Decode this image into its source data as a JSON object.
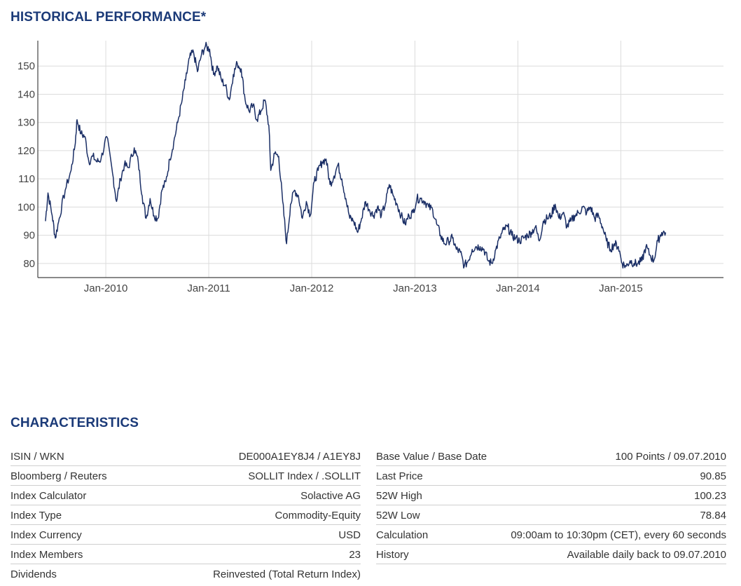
{
  "performance": {
    "title": "HISTORICAL PERFORMANCE*"
  },
  "chart_data": {
    "type": "line",
    "title": "",
    "xlabel": "",
    "ylabel": "",
    "x_ticks": [
      "Jan-2010",
      "Jan-2011",
      "Jan-2012",
      "Jan-2013",
      "Jan-2014",
      "Jan-2015"
    ],
    "y_ticks": [
      80,
      90,
      100,
      110,
      120,
      130,
      140,
      150
    ],
    "xlim": [
      "2009-05-05",
      "2015-12-31"
    ],
    "ylim": [
      75,
      159
    ],
    "grid": true,
    "legend": "none",
    "line_color": "#1b2f66",
    "series": [
      {
        "points": [
          [
            "2009-06-01",
            95
          ],
          [
            "2009-06-10",
            105
          ],
          [
            "2009-06-25",
            97
          ],
          [
            "2009-07-06",
            89
          ],
          [
            "2009-07-20",
            96
          ],
          [
            "2009-08-10",
            106
          ],
          [
            "2009-08-31",
            113
          ],
          [
            "2009-09-14",
            122
          ],
          [
            "2009-09-21",
            131
          ],
          [
            "2009-10-05",
            126
          ],
          [
            "2009-10-19",
            125
          ],
          [
            "2009-11-02",
            116
          ],
          [
            "2009-11-16",
            118
          ],
          [
            "2009-12-01",
            116
          ],
          [
            "2009-12-15",
            117
          ],
          [
            "2010-01-04",
            125
          ],
          [
            "2010-01-25",
            112
          ],
          [
            "2010-02-08",
            102
          ],
          [
            "2010-02-22",
            110
          ],
          [
            "2010-03-08",
            115
          ],
          [
            "2010-03-22",
            114
          ],
          [
            "2010-04-12",
            121
          ],
          [
            "2010-04-26",
            116
          ],
          [
            "2010-05-10",
            104
          ],
          [
            "2010-05-24",
            96
          ],
          [
            "2010-06-07",
            103
          ],
          [
            "2010-06-21",
            97
          ],
          [
            "2010-07-05",
            96
          ],
          [
            "2010-07-19",
            106
          ],
          [
            "2010-08-02",
            109
          ],
          [
            "2010-08-16",
            117
          ],
          [
            "2010-08-30",
            123
          ],
          [
            "2010-09-13",
            130
          ],
          [
            "2010-09-27",
            137
          ],
          [
            "2010-10-11",
            145
          ],
          [
            "2010-10-25",
            153
          ],
          [
            "2010-11-08",
            155
          ],
          [
            "2010-11-22",
            148
          ],
          [
            "2010-12-06",
            154
          ],
          [
            "2010-12-20",
            157
          ],
          [
            "2011-01-04",
            156
          ],
          [
            "2011-01-18",
            147
          ],
          [
            "2011-02-01",
            150
          ],
          [
            "2011-02-15",
            145
          ],
          [
            "2011-03-01",
            143
          ],
          [
            "2011-03-15",
            138
          ],
          [
            "2011-03-29",
            147
          ],
          [
            "2011-04-12",
            151
          ],
          [
            "2011-04-26",
            149
          ],
          [
            "2011-05-10",
            138
          ],
          [
            "2011-05-24",
            134
          ],
          [
            "2011-06-07",
            136
          ],
          [
            "2011-06-21",
            131
          ],
          [
            "2011-07-05",
            134
          ],
          [
            "2011-07-19",
            138
          ],
          [
            "2011-08-02",
            129
          ],
          [
            "2011-08-09",
            113
          ],
          [
            "2011-08-23",
            119
          ],
          [
            "2011-09-06",
            118
          ],
          [
            "2011-09-20",
            102
          ],
          [
            "2011-10-04",
            87
          ],
          [
            "2011-10-18",
            101
          ],
          [
            "2011-11-01",
            106
          ],
          [
            "2011-11-15",
            104
          ],
          [
            "2011-11-29",
            96
          ],
          [
            "2011-12-13",
            102
          ],
          [
            "2011-12-27",
            97
          ],
          [
            "2012-01-10",
            109
          ],
          [
            "2012-01-24",
            113
          ],
          [
            "2012-02-07",
            116
          ],
          [
            "2012-02-21",
            117
          ],
          [
            "2012-03-06",
            108
          ],
          [
            "2012-03-20",
            111
          ],
          [
            "2012-04-03",
            115
          ],
          [
            "2012-04-17",
            110
          ],
          [
            "2012-05-01",
            103
          ],
          [
            "2012-05-15",
            96
          ],
          [
            "2012-05-29",
            95
          ],
          [
            "2012-06-12",
            91
          ],
          [
            "2012-06-26",
            96
          ],
          [
            "2012-07-10",
            102
          ],
          [
            "2012-07-24",
            99
          ],
          [
            "2012-08-07",
            97
          ],
          [
            "2012-08-21",
            100
          ],
          [
            "2012-09-04",
            97
          ],
          [
            "2012-09-18",
            101
          ],
          [
            "2012-10-02",
            108
          ],
          [
            "2012-10-16",
            104
          ],
          [
            "2012-10-30",
            101
          ],
          [
            "2012-11-13",
            97
          ],
          [
            "2012-11-27",
            94
          ],
          [
            "2012-12-11",
            97
          ],
          [
            "2012-12-25",
            98
          ],
          [
            "2013-01-08",
            103
          ],
          [
            "2013-01-22",
            103
          ],
          [
            "2013-02-05",
            102
          ],
          [
            "2013-02-19",
            100
          ],
          [
            "2013-03-05",
            99
          ],
          [
            "2013-03-19",
            94
          ],
          [
            "2013-04-02",
            90
          ],
          [
            "2013-04-16",
            87
          ],
          [
            "2013-04-30",
            88
          ],
          [
            "2013-05-14",
            89
          ],
          [
            "2013-05-28",
            85
          ],
          [
            "2013-06-11",
            84
          ],
          [
            "2013-06-25",
            79
          ],
          [
            "2013-07-09",
            81
          ],
          [
            "2013-07-23",
            85
          ],
          [
            "2013-08-06",
            86
          ],
          [
            "2013-08-20",
            86
          ],
          [
            "2013-09-03",
            85
          ],
          [
            "2013-09-17",
            81
          ],
          [
            "2013-10-01",
            80
          ],
          [
            "2013-10-15",
            85
          ],
          [
            "2013-10-29",
            89
          ],
          [
            "2013-11-12",
            92
          ],
          [
            "2013-11-26",
            93
          ],
          [
            "2013-12-10",
            90
          ],
          [
            "2013-12-24",
            89
          ],
          [
            "2014-01-07",
            88
          ],
          [
            "2014-01-21",
            89
          ],
          [
            "2014-02-04",
            90
          ],
          [
            "2014-02-18",
            91
          ],
          [
            "2014-03-04",
            93
          ],
          [
            "2014-03-18",
            88
          ],
          [
            "2014-04-01",
            95
          ],
          [
            "2014-04-15",
            96
          ],
          [
            "2014-04-29",
            97
          ],
          [
            "2014-05-13",
            101
          ],
          [
            "2014-05-27",
            96
          ],
          [
            "2014-06-10",
            98
          ],
          [
            "2014-06-24",
            93
          ],
          [
            "2014-07-08",
            95
          ],
          [
            "2014-07-22",
            97
          ],
          [
            "2014-08-05",
            98
          ],
          [
            "2014-08-19",
            100
          ],
          [
            "2014-09-02",
            98
          ],
          [
            "2014-09-16",
            100
          ],
          [
            "2014-09-30",
            96
          ],
          [
            "2014-10-14",
            97
          ],
          [
            "2014-10-28",
            93
          ],
          [
            "2014-11-11",
            88
          ],
          [
            "2014-11-25",
            85
          ],
          [
            "2014-12-09",
            87
          ],
          [
            "2014-12-23",
            86
          ],
          [
            "2015-01-06",
            80
          ],
          [
            "2015-01-20",
            79
          ],
          [
            "2015-02-03",
            81
          ],
          [
            "2015-02-17",
            80
          ],
          [
            "2015-03-03",
            80
          ],
          [
            "2015-03-17",
            81
          ],
          [
            "2015-03-31",
            86
          ],
          [
            "2015-04-14",
            83
          ],
          [
            "2015-04-28",
            81
          ],
          [
            "2015-05-12",
            88
          ],
          [
            "2015-05-26",
            91
          ],
          [
            "2015-06-09",
            91
          ]
        ]
      }
    ]
  },
  "characteristics": {
    "title": "CHARACTERISTICS",
    "left_rows": [
      {
        "label": "ISIN / WKN",
        "value": "DE000A1EY8J4 / A1EY8J"
      },
      {
        "label": "Bloomberg / Reuters",
        "value": "SOLLIT Index / .SOLLIT"
      },
      {
        "label": "Index Calculator",
        "value": "Solactive AG"
      },
      {
        "label": "Index Type",
        "value": "Commodity-Equity"
      },
      {
        "label": "Index Currency",
        "value": "USD"
      },
      {
        "label": "Index Members",
        "value": "23"
      },
      {
        "label": "Dividends",
        "value": "Reinvested (Total Return Index)"
      }
    ],
    "right_rows": [
      {
        "label": "Base Value / Base Date",
        "value": "100 Points / 09.07.2010"
      },
      {
        "label": "Last Price",
        "value": "90.85"
      },
      {
        "label": "52W High",
        "value": "100.23"
      },
      {
        "label": "52W Low",
        "value": "78.84"
      },
      {
        "label": "Calculation",
        "value": "09:00am to 10:30pm (CET), every 60 seconds"
      },
      {
        "label": "History",
        "value": "Available daily back to 09.07.2010"
      }
    ]
  }
}
